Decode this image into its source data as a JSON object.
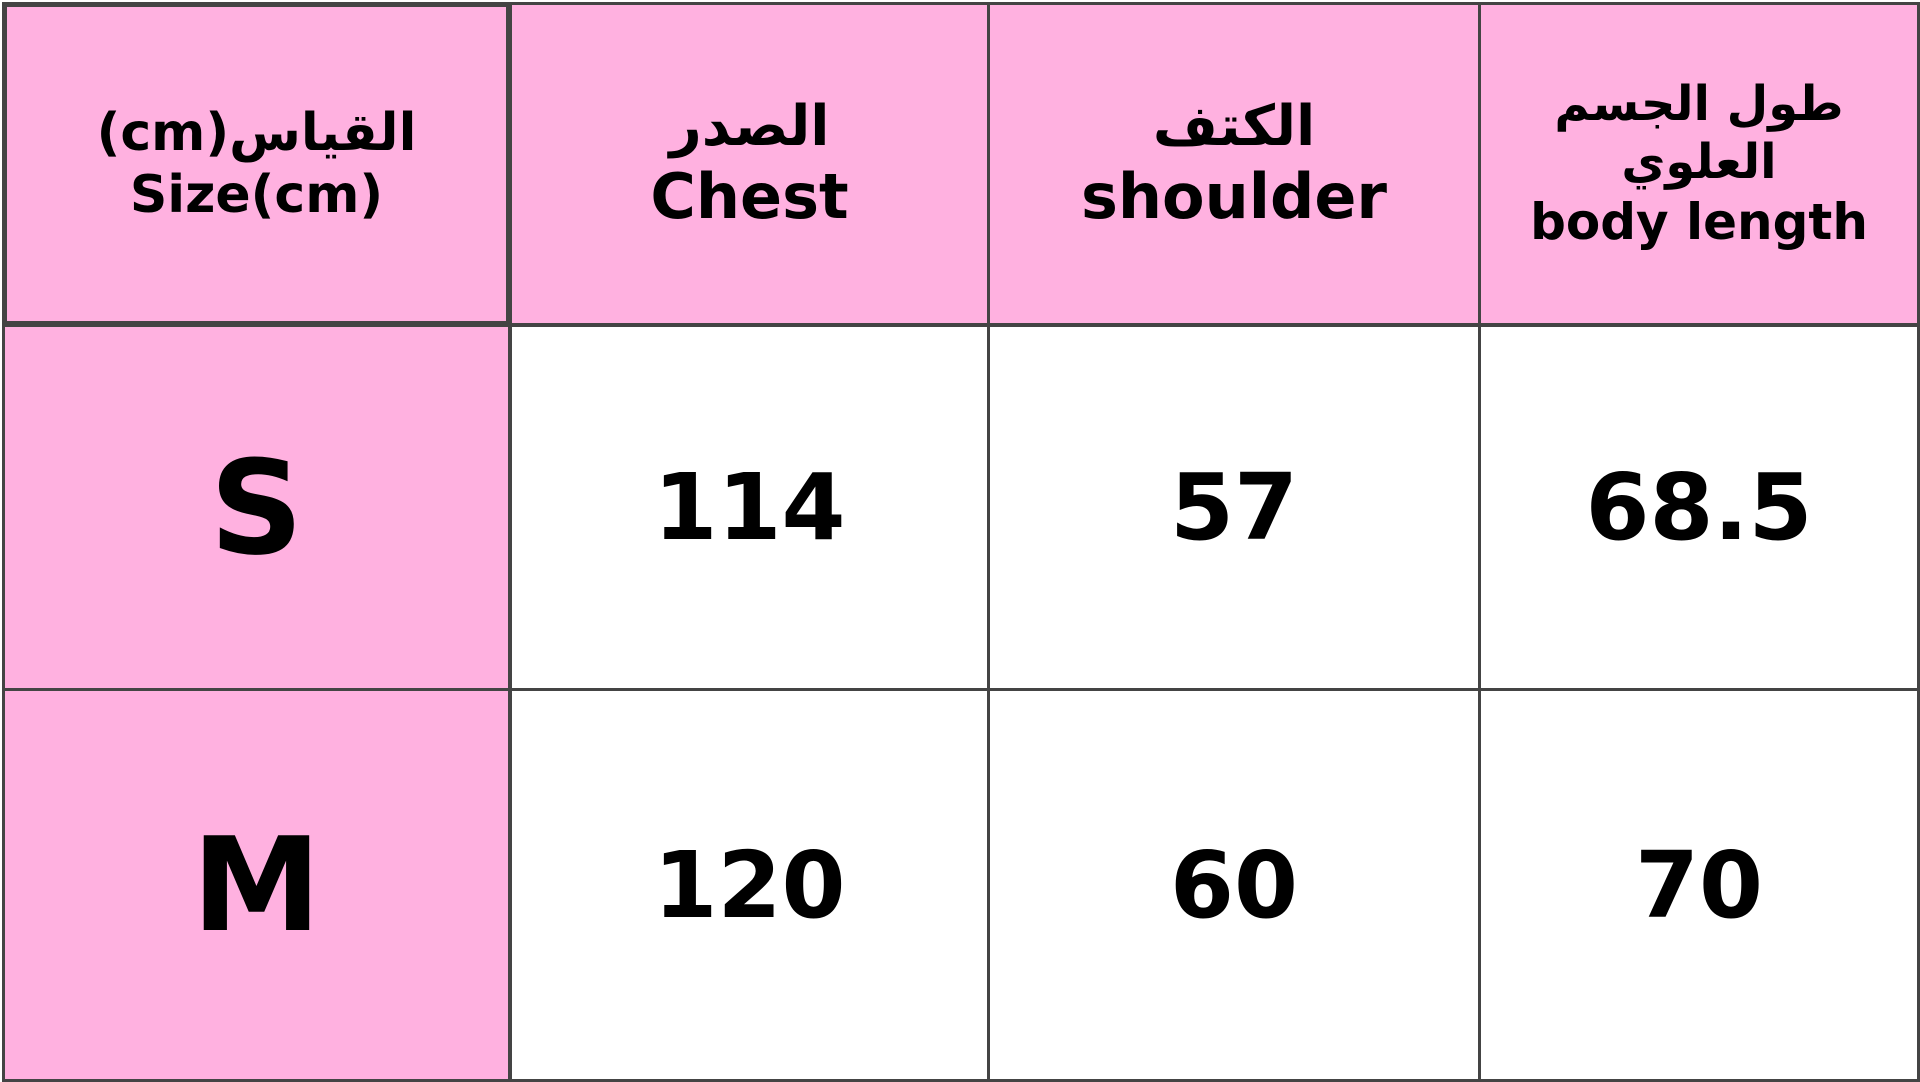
{
  "colors": {
    "header_bg": "#ffb1e0",
    "size_col_bg": "#ffb1e0",
    "border": "#444444"
  },
  "headers": [
    {
      "ar": "القياس(cm)",
      "en": "Size(cm)"
    },
    {
      "ar": "الصدر",
      "en": "Chest"
    },
    {
      "ar": "الكتف",
      "en": "shoulder"
    },
    {
      "ar": "طول الجسم العلوي",
      "en": "body length"
    }
  ],
  "rows": [
    {
      "size": "S",
      "chest": "114",
      "shoulder": "57",
      "body_length": "68.5"
    },
    {
      "size": "M",
      "chest": "120",
      "shoulder": "60",
      "body_length": "70"
    }
  ]
}
